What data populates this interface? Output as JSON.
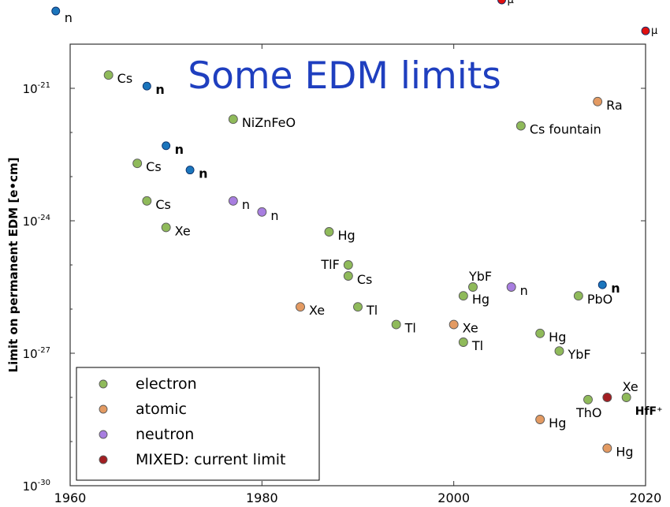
{
  "chart_data": {
    "type": "scatter",
    "title": "Some EDM limits",
    "xlabel": "",
    "ylabel": "Limit on permanent EDM [e•cm]",
    "xlim": [
      1960,
      2020
    ],
    "ylim_log10": [
      -30,
      -20
    ],
    "y_scale": "log",
    "x_ticks": [
      "1960",
      "1980",
      "2000",
      "2020"
    ],
    "y_ticks": [
      {
        "exp": -21,
        "base": "10",
        "sup": "-21"
      },
      {
        "exp": -24,
        "base": "10",
        "sup": "-24"
      },
      {
        "exp": -27,
        "base": "10",
        "sup": "-27"
      },
      {
        "exp": -30,
        "base": "10",
        "sup": "-30"
      }
    ],
    "grid": false,
    "legend_position": "bottom-left",
    "legend": [
      {
        "name": "electron",
        "category": "electron"
      },
      {
        "name": "atomic",
        "category": "atomic"
      },
      {
        "name": "neutron",
        "category": "neutron"
      },
      {
        "name": "MIXED: current limit",
        "category": "mixed"
      }
    ],
    "colors": {
      "electron": "#8fba5a",
      "atomic": "#e39a62",
      "neutron": "#a87ee0",
      "mixed": "#a21e22",
      "neutron_overlay": "#1b75bc",
      "muon": "#e01010"
    },
    "points": [
      {
        "x": 1958.5,
        "y_log10": -19.25,
        "label": "n",
        "category": "neutron_overlay",
        "bold": false
      },
      {
        "x": 1964.0,
        "y_log10": -20.7,
        "label": "Cs",
        "category": "electron",
        "bold": false
      },
      {
        "x": 1968.0,
        "y_log10": -20.95,
        "label": "n",
        "category": "neutron_overlay",
        "bold": true
      },
      {
        "x": 1977.0,
        "y_log10": -21.7,
        "label": "NiZnFeO",
        "category": "electron",
        "bold": false
      },
      {
        "x": 1970.0,
        "y_log10": -22.3,
        "label": "n",
        "category": "neutron_overlay",
        "bold": true
      },
      {
        "x": 1967.0,
        "y_log10": -22.7,
        "label": "Cs",
        "category": "electron",
        "bold": false
      },
      {
        "x": 1972.5,
        "y_log10": -22.85,
        "label": "n",
        "category": "neutron_overlay",
        "bold": true
      },
      {
        "x": 1968.0,
        "y_log10": -23.55,
        "label": "Cs",
        "category": "electron",
        "bold": false
      },
      {
        "x": 1977.0,
        "y_log10": -23.55,
        "label": "n",
        "category": "neutron",
        "bold": false
      },
      {
        "x": 1980.0,
        "y_log10": -23.8,
        "label": "n",
        "category": "neutron",
        "bold": false
      },
      {
        "x": 1970.0,
        "y_log10": -24.15,
        "label": "Xe",
        "category": "electron",
        "bold": false
      },
      {
        "x": 1987.0,
        "y_log10": -24.25,
        "label": "Hg",
        "category": "electron",
        "bold": false
      },
      {
        "x": 1989.0,
        "y_log10": -25.0,
        "label": "TlF",
        "category": "electron",
        "bold": false,
        "label_side": "left"
      },
      {
        "x": 1989.0,
        "y_log10": -25.25,
        "label": "Cs",
        "category": "electron",
        "bold": false
      },
      {
        "x": 2002.0,
        "y_log10": -25.5,
        "label": "YbF",
        "category": "electron",
        "bold": false,
        "label_side": "top"
      },
      {
        "x": 2001.0,
        "y_log10": -25.7,
        "label": "Hg",
        "category": "electron",
        "bold": false
      },
      {
        "x": 2006.0,
        "y_log10": -25.5,
        "label": "n",
        "category": "neutron",
        "bold": false
      },
      {
        "x": 2015.5,
        "y_log10": -25.45,
        "label": "n",
        "category": "neutron_overlay",
        "bold": true
      },
      {
        "x": 2013.0,
        "y_log10": -25.7,
        "label": "PbO",
        "category": "electron",
        "bold": false
      },
      {
        "x": 1984.0,
        "y_log10": -25.95,
        "label": "Xe",
        "category": "atomic",
        "bold": false
      },
      {
        "x": 1990.0,
        "y_log10": -25.95,
        "label": "Tl",
        "category": "electron",
        "bold": false
      },
      {
        "x": 1994.0,
        "y_log10": -26.35,
        "label": "Tl",
        "category": "electron",
        "bold": false
      },
      {
        "x": 2000.0,
        "y_log10": -26.35,
        "label": "Xe",
        "category": "atomic",
        "bold": false
      },
      {
        "x": 2001.0,
        "y_log10": -26.75,
        "label": "Tl",
        "category": "electron",
        "bold": false
      },
      {
        "x": 2009.0,
        "y_log10": -26.55,
        "label": "Hg",
        "category": "electron",
        "bold": false
      },
      {
        "x": 2011.0,
        "y_log10": -26.95,
        "label": "YbF",
        "category": "electron",
        "bold": false
      },
      {
        "x": 2014.0,
        "y_log10": -28.05,
        "label": "ThO",
        "category": "electron",
        "bold": false,
        "label_side": "below"
      },
      {
        "x": 2016.0,
        "y_log10": -28.0,
        "label": "",
        "category": "mixed",
        "bold": false
      },
      {
        "x": 2018.0,
        "y_log10": -28.0,
        "label": "Xe",
        "category": "electron",
        "bold": false,
        "label_side": "top"
      },
      {
        "x": 2009.0,
        "y_log10": -28.5,
        "label": "Hg",
        "category": "atomic",
        "bold": false
      },
      {
        "x": 2016.0,
        "y_log10": -29.15,
        "label": "Hg",
        "category": "atomic",
        "bold": false
      },
      {
        "x": 2007.0,
        "y_log10": -21.85,
        "label": "Cs fountain",
        "category": "electron",
        "bold": false
      },
      {
        "x": 2015.0,
        "y_log10": -21.3,
        "label": "Ra",
        "category": "atomic",
        "bold": false
      },
      {
        "x": 2005.0,
        "y_log10": -19.0,
        "label": "μ",
        "category": "muon",
        "bold": false
      },
      {
        "x": 2020.0,
        "y_log10": -19.7,
        "label": "μ",
        "category": "muon",
        "bold": false
      }
    ],
    "annotations": [
      {
        "text": "HfF⁺",
        "x": 2018.5,
        "y_log10": -28.25
      }
    ]
  }
}
